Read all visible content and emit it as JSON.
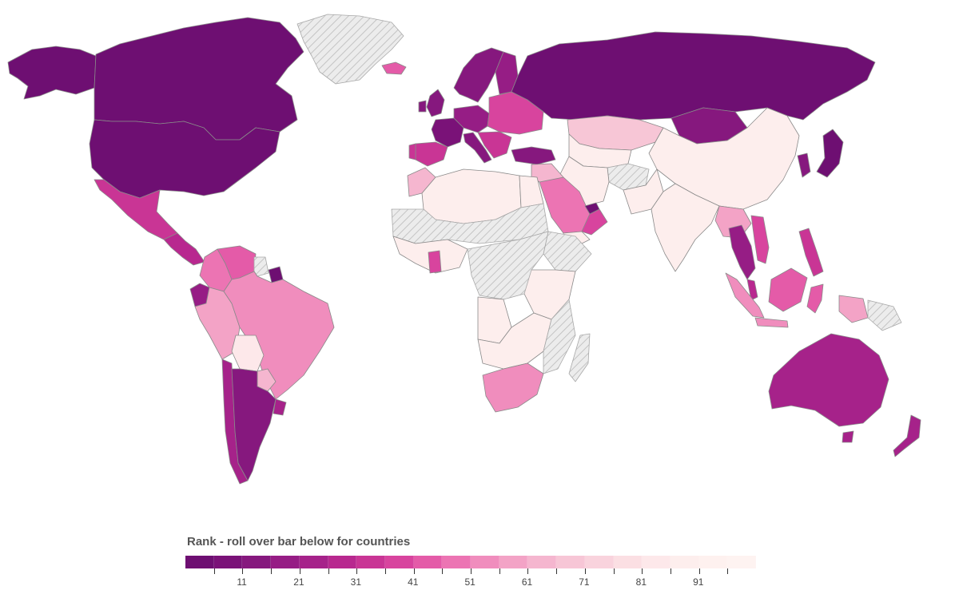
{
  "legend": {
    "title": "Rank - roll over bar below for countries",
    "tick_labels": [
      "11",
      "21",
      "31",
      "41",
      "51",
      "61",
      "71",
      "81",
      "91"
    ],
    "scale_colors": [
      "#6e0f72",
      "#7a1278",
      "#86187e",
      "#961d85",
      "#a6228a",
      "#b8288f",
      "#c93595",
      "#d8449e",
      "#e45ba8",
      "#ec74b3",
      "#f08dbd",
      "#f3a3c6",
      "#f5b6cf",
      "#f7c6d6",
      "#f9d3dd",
      "#fbdfe3",
      "#fde8ea",
      "#fdeeed",
      "#fef1ef",
      "#fef3f1"
    ]
  },
  "map": {
    "regions": [
      {
        "name": "Canada",
        "color": "#6e0f72"
      },
      {
        "name": "United States",
        "color": "#6e0f72"
      },
      {
        "name": "Alaska",
        "color": "#6e0f72"
      },
      {
        "name": "Greenland",
        "color": "nodata"
      },
      {
        "name": "Iceland",
        "color": "#e45ba8"
      },
      {
        "name": "Mexico",
        "color": "#c93595"
      },
      {
        "name": "Central America",
        "color": "#b8288f"
      },
      {
        "name": "Colombia",
        "color": "#ec74b3"
      },
      {
        "name": "Venezuela",
        "color": "#e45ba8"
      },
      {
        "name": "Guyana",
        "color": "nodata"
      },
      {
        "name": "Suriname",
        "color": "#6e0f72"
      },
      {
        "name": "Ecuador",
        "color": "#961d85"
      },
      {
        "name": "Peru",
        "color": "#f3a3c6"
      },
      {
        "name": "Brazil",
        "color": "#f08dbd"
      },
      {
        "name": "Bolivia",
        "color": "#fde8ea"
      },
      {
        "name": "Paraguay",
        "color": "#f5b6cf"
      },
      {
        "name": "Chile",
        "color": "#a6228a"
      },
      {
        "name": "Argentina",
        "color": "#86187e"
      },
      {
        "name": "Uruguay",
        "color": "#a6228a"
      },
      {
        "name": "Scandinavia",
        "color": "#86187e"
      },
      {
        "name": "Finland",
        "color": "#961d85"
      },
      {
        "name": "United Kingdom",
        "color": "#86187e"
      },
      {
        "name": "Ireland",
        "color": "#86187e"
      },
      {
        "name": "France",
        "color": "#7a1278"
      },
      {
        "name": "Spain",
        "color": "#c93595"
      },
      {
        "name": "Portugal",
        "color": "#c93595"
      },
      {
        "name": "Central Europe",
        "color": "#961d85"
      },
      {
        "name": "Eastern Europe",
        "color": "#d8449e"
      },
      {
        "name": "Italy",
        "color": "#86187e"
      },
      {
        "name": "Balkans",
        "color": "#c93595"
      },
      {
        "name": "Russia",
        "color": "#6e0f72"
      },
      {
        "name": "Turkey",
        "color": "#86187e"
      },
      {
        "name": "Kazakhstan",
        "color": "#f7c6d6"
      },
      {
        "name": "Mongolia",
        "color": "#86187e"
      },
      {
        "name": "China",
        "color": "#fdeeed"
      },
      {
        "name": "Japan",
        "color": "#6e0f72"
      },
      {
        "name": "Korea",
        "color": "#86187e"
      },
      {
        "name": "Central Asia",
        "color": "#fdeeed"
      },
      {
        "name": "Afghanistan",
        "color": "nodata"
      },
      {
        "name": "Iran",
        "color": "#fdeeed"
      },
      {
        "name": "Pakistan",
        "color": "#fdeeed"
      },
      {
        "name": "India",
        "color": "#fdeeed"
      },
      {
        "name": "Saudi Arabia",
        "color": "#ec74b3"
      },
      {
        "name": "Yemen",
        "color": "#fdeeed"
      },
      {
        "name": "Oman",
        "color": "#d8449e"
      },
      {
        "name": "UAE",
        "color": "#6e0f72"
      },
      {
        "name": "Middle East",
        "color": "#f5b6cf"
      },
      {
        "name": "Morocco",
        "color": "#f5b6cf"
      },
      {
        "name": "North Africa",
        "color": "#fdeeed"
      },
      {
        "name": "Egypt",
        "color": "#fdeeed"
      },
      {
        "name": "Sahel",
        "color": "nodata"
      },
      {
        "name": "West Africa",
        "color": "#fdeeed"
      },
      {
        "name": "Ghana",
        "color": "#d8449e"
      },
      {
        "name": "Ethiopia",
        "color": "nodata"
      },
      {
        "name": "East Africa",
        "color": "#fdeeed"
      },
      {
        "name": "Congo",
        "color": "nodata"
      },
      {
        "name": "Angola",
        "color": "#fdeeed"
      },
      {
        "name": "Southern Africa",
        "color": "#fdeeed"
      },
      {
        "name": "Mozambique",
        "color": "nodata"
      },
      {
        "name": "South Africa",
        "color": "#f08dbd"
      },
      {
        "name": "Madagascar",
        "color": "nodata"
      },
      {
        "name": "Mainland Southeast Asia",
        "color": "#f3a3c6"
      },
      {
        "name": "Thailand",
        "color": "#961d85"
      },
      {
        "name": "Vietnam",
        "color": "#d8449e"
      },
      {
        "name": "Malaysia Peninsula",
        "color": "#b8288f"
      },
      {
        "name": "Philippines",
        "color": "#c93595"
      },
      {
        "name": "Borneo",
        "color": "#e45ba8"
      },
      {
        "name": "Sumatra",
        "color": "#f08dbd"
      },
      {
        "name": "Java",
        "color": "#f08dbd"
      },
      {
        "name": "Sulawesi",
        "color": "#e45ba8"
      },
      {
        "name": "New Guinea",
        "color": "#f3a3c6"
      },
      {
        "name": "Papua New Guinea",
        "color": "nodata"
      },
      {
        "name": "Australia",
        "color": "#a6228a"
      },
      {
        "name": "Tasmania",
        "color": "#a6228a"
      },
      {
        "name": "New Zealand",
        "color": "#a6228a"
      }
    ]
  }
}
